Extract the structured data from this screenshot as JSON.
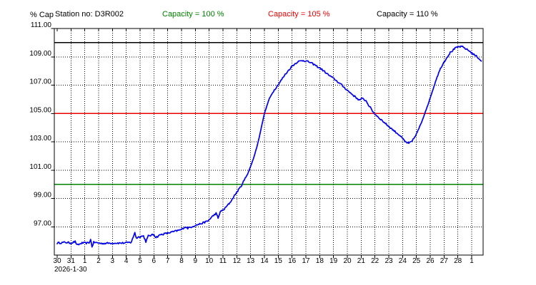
{
  "header": {
    "y_axis_title": "% Cap",
    "station_label": "Station no: D3R002",
    "capacity_100_label": "Capacity = 100 %",
    "capacity_105_label": "Capacity = 105 %",
    "capacity_110_label": "Capacity = 110 %"
  },
  "colors": {
    "series": "#0000ee",
    "capacity_100": "#008000",
    "capacity_105": "#e80000",
    "capacity_110": "#000000",
    "grid": "#000000",
    "border": "#000000"
  },
  "chart_data": {
    "type": "line",
    "title": "",
    "ylabel": "% Cap",
    "xlabel": "",
    "grid": true,
    "ylim": [
      95,
      111
    ],
    "x_start_date_label": "2026-1-30",
    "x_tick_labels": [
      "30",
      "31",
      "1",
      "2",
      "3",
      "4",
      "5",
      "6",
      "7",
      "8",
      "9",
      "10",
      "11",
      "12",
      "13",
      "14",
      "15",
      "16",
      "17",
      "18",
      "19",
      "20",
      "21",
      "22",
      "23",
      "24",
      "25",
      "26",
      "27",
      "28",
      "1"
    ],
    "y_tick_values": [
      97,
      99,
      101,
      103,
      105,
      107,
      109,
      111
    ],
    "y_tick_labels": [
      "97.00",
      "99.00",
      "101.00",
      "103.00",
      "105.00",
      "107.00",
      "109.00",
      "111.00"
    ],
    "y_gridline_values": [
      97,
      99,
      101,
      103,
      105,
      107,
      109
    ],
    "reference_lines": [
      {
        "name": "capacity-line-100",
        "label": "Capacity = 100 %",
        "value": 100,
        "color": "#008000"
      },
      {
        "name": "capacity-line-105",
        "label": "Capacity = 105 %",
        "value": 105,
        "color": "#e80000"
      },
      {
        "name": "capacity-line-110",
        "label": "Capacity = 110 %",
        "value": 110,
        "color": "#000000"
      }
    ],
    "series": [
      {
        "name": "% Cap",
        "color": "#0000ee",
        "points_format": "[days_since_2026-01-30, percent_capacity]",
        "points": [
          [
            0,
            95.85
          ],
          [
            0.6,
            95.9
          ],
          [
            1.0,
            95.85
          ],
          [
            1.3,
            95.95
          ],
          [
            1.45,
            95.7
          ],
          [
            1.8,
            95.85
          ],
          [
            2.3,
            95.85
          ],
          [
            2.42,
            96.1
          ],
          [
            2.52,
            95.6
          ],
          [
            2.65,
            95.9
          ],
          [
            3.2,
            95.82
          ],
          [
            4.0,
            95.85
          ],
          [
            4.8,
            95.85
          ],
          [
            5.35,
            95.9
          ],
          [
            5.5,
            96.25
          ],
          [
            5.62,
            96.6
          ],
          [
            5.72,
            96.2
          ],
          [
            5.95,
            96.3
          ],
          [
            6.25,
            96.35
          ],
          [
            6.42,
            95.95
          ],
          [
            6.6,
            96.35
          ],
          [
            7.0,
            96.45
          ],
          [
            7.15,
            96.25
          ],
          [
            7.5,
            96.45
          ],
          [
            8.0,
            96.55
          ],
          [
            8.6,
            96.7
          ],
          [
            9.0,
            96.8
          ],
          [
            9.25,
            97.0
          ],
          [
            9.45,
            96.9
          ],
          [
            10.0,
            97.1
          ],
          [
            10.5,
            97.25
          ],
          [
            10.9,
            97.4
          ],
          [
            11.2,
            97.7
          ],
          [
            11.5,
            97.95
          ],
          [
            11.65,
            97.6
          ],
          [
            11.8,
            98.05
          ],
          [
            12.1,
            98.25
          ],
          [
            12.5,
            98.7
          ],
          [
            12.9,
            99.3
          ],
          [
            13.3,
            99.85
          ],
          [
            13.6,
            100.4
          ],
          [
            13.9,
            101.0
          ],
          [
            14.2,
            101.8
          ],
          [
            14.5,
            102.8
          ],
          [
            14.75,
            103.9
          ],
          [
            15.0,
            105.0
          ],
          [
            15.3,
            105.9
          ],
          [
            15.6,
            106.5
          ],
          [
            16.0,
            107.05
          ],
          [
            16.5,
            107.75
          ],
          [
            17.0,
            108.35
          ],
          [
            17.4,
            108.65
          ],
          [
            17.8,
            108.75
          ],
          [
            18.2,
            108.65
          ],
          [
            18.6,
            108.45
          ],
          [
            19.1,
            108.15
          ],
          [
            19.6,
            107.75
          ],
          [
            20.1,
            107.4
          ],
          [
            20.6,
            107.0
          ],
          [
            21.1,
            106.55
          ],
          [
            21.6,
            106.15
          ],
          [
            21.85,
            105.95
          ],
          [
            22.1,
            106.05
          ],
          [
            22.35,
            105.9
          ],
          [
            22.6,
            105.5
          ],
          [
            22.95,
            105.0
          ],
          [
            23.4,
            104.6
          ],
          [
            24.1,
            104.0
          ],
          [
            24.8,
            103.45
          ],
          [
            25.2,
            103.0
          ],
          [
            25.45,
            102.88
          ],
          [
            25.7,
            103.05
          ],
          [
            26.0,
            103.55
          ],
          [
            26.35,
            104.3
          ],
          [
            26.6,
            105.0
          ],
          [
            26.9,
            105.8
          ],
          [
            27.2,
            106.7
          ],
          [
            27.5,
            107.6
          ],
          [
            27.8,
            108.3
          ],
          [
            28.1,
            108.8
          ],
          [
            28.45,
            109.3
          ],
          [
            28.8,
            109.6
          ],
          [
            29.1,
            109.72
          ],
          [
            29.35,
            109.7
          ],
          [
            29.6,
            109.55
          ],
          [
            29.85,
            109.4
          ],
          [
            30.1,
            109.2
          ],
          [
            30.4,
            109.0
          ],
          [
            30.7,
            108.7
          ]
        ]
      }
    ],
    "legend_position": "top"
  }
}
